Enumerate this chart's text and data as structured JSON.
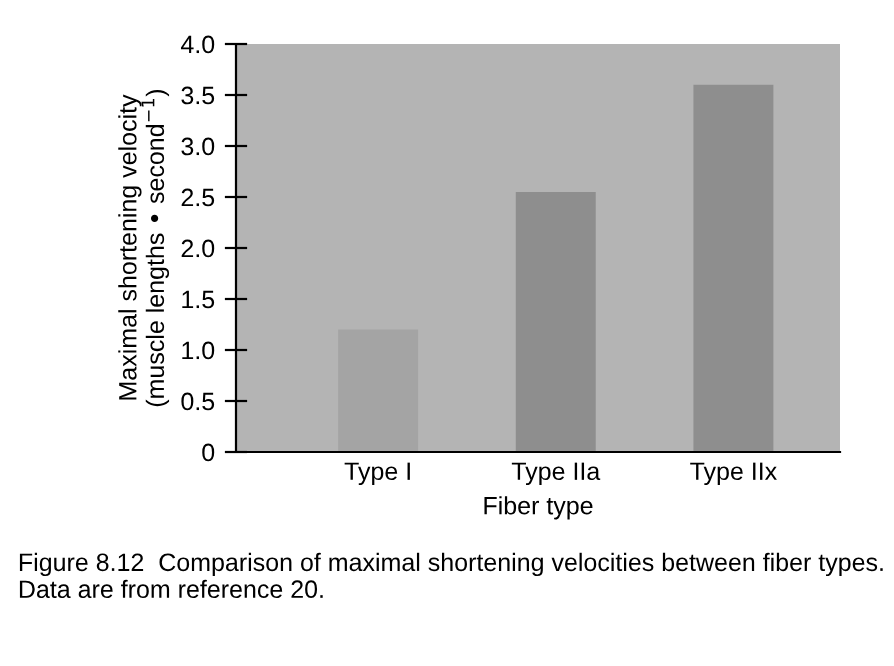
{
  "chart_data": {
    "type": "bar",
    "categories": [
      "Type I",
      "Type IIa",
      "Type IIx"
    ],
    "values": [
      1.2,
      2.55,
      3.6
    ],
    "colors": [
      "#a4a4a4",
      "#8e8e8e",
      "#8e8e8e"
    ],
    "xlabel": "Fiber type",
    "ylabel": "Maximal shortening velocity\n(muscle lengths • second$^{−1}$)",
    "ylim": [
      0,
      4.0
    ],
    "yticks": [
      0,
      0.5,
      {
        "value": 1,
        "label": "1.0"
      },
      1.5,
      {
        "value": 2,
        "label": "2.0"
      },
      2.5,
      {
        "value": 3,
        "label": "3.0"
      },
      3.5,
      {
        "value": 4,
        "label": "4.0"
      }
    ],
    "grid": false,
    "annotations": [
      "Figure 8.12  Comparison of maximal shortening velocities between fiber types. Data are from reference 20."
    ]
  }
}
